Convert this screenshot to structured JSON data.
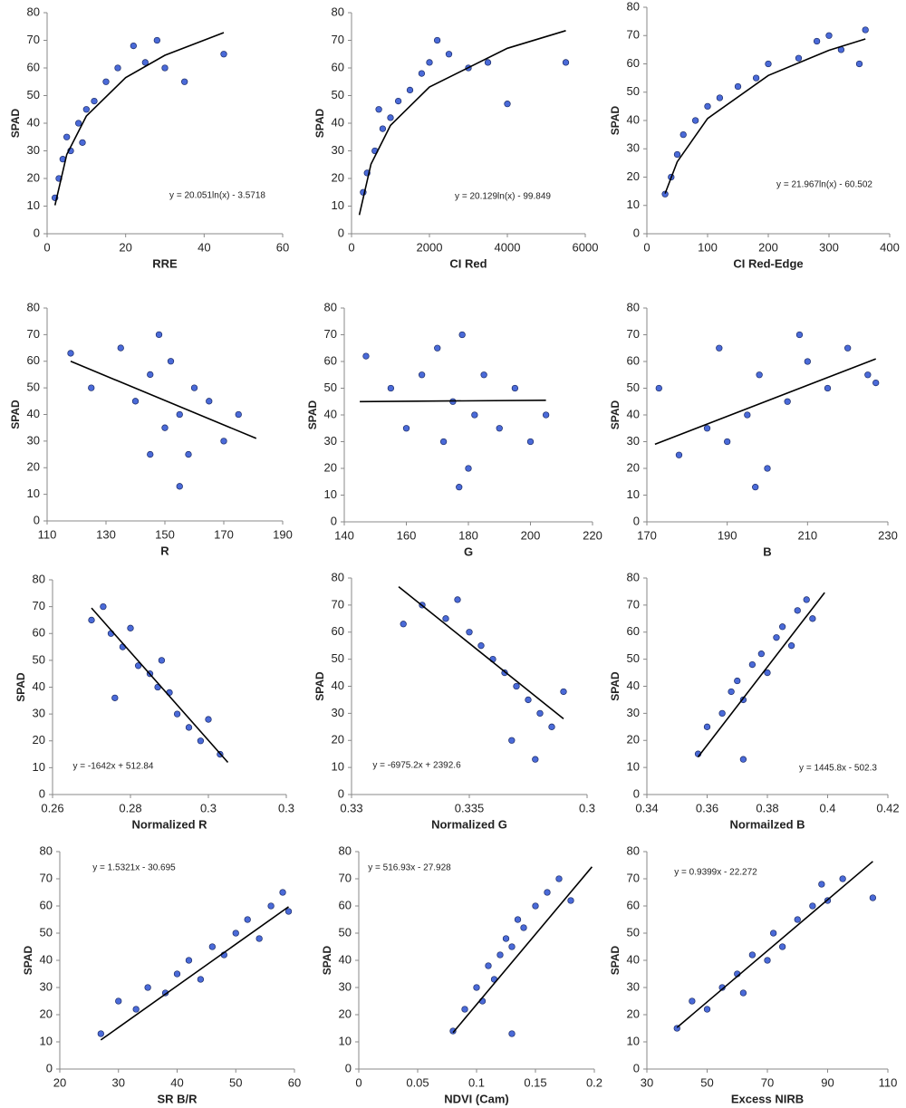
{
  "chart_data": [
    {
      "type": "scatter",
      "x_label": "RRE",
      "y_label": "SPAD",
      "equation": "y = 20.051ln(x) - 3.5718",
      "xlim": [
        0,
        60
      ],
      "ylim": [
        0,
        80
      ],
      "xticks": [
        0,
        20,
        40,
        60
      ],
      "yticks": [
        0,
        10,
        20,
        30,
        40,
        50,
        60,
        70,
        80
      ],
      "color": "#4a6ad8",
      "line_color": "#000000",
      "points": {
        "x": [
          2,
          3,
          4,
          5,
          6,
          8,
          9,
          10,
          12,
          15,
          18,
          22,
          25,
          28,
          30,
          35,
          45
        ],
        "y": [
          13,
          20,
          27,
          35,
          30,
          40,
          33,
          45,
          48,
          55,
          60,
          68,
          62,
          70,
          60,
          55,
          65
        ]
      },
      "trendline": {
        "x": [
          2,
          5,
          10,
          20,
          30,
          45
        ],
        "y": [
          10.3,
          28.7,
          42.6,
          56.5,
          64.6,
          72.8
        ]
      }
    },
    {
      "type": "scatter",
      "x_label": "CI Red",
      "y_label": "SPAD",
      "equation": "y = 20.129ln(x) - 99.849",
      "xlim": [
        0,
        6000
      ],
      "ylim": [
        0,
        80
      ],
      "xticks": [
        0,
        2000,
        4000,
        6000
      ],
      "yticks": [
        0,
        10,
        20,
        30,
        40,
        50,
        60,
        70,
        80
      ],
      "color": "#4a6ad8",
      "line_color": "#000000",
      "points": {
        "x": [
          300,
          400,
          600,
          700,
          800,
          1000,
          1200,
          1500,
          1800,
          2000,
          2200,
          2500,
          3000,
          3500,
          4000,
          5500
        ],
        "y": [
          15,
          22,
          30,
          45,
          38,
          42,
          48,
          52,
          58,
          62,
          70,
          65,
          60,
          62,
          47,
          62
        ]
      },
      "trendline": {
        "x": [
          200,
          500,
          1000,
          2000,
          4000,
          5500
        ],
        "y": [
          6.8,
          25.2,
          39.2,
          53.1,
          67.1,
          73.5
        ]
      }
    },
    {
      "type": "scatter",
      "x_label": "CI Red-Edge",
      "y_label": "SPAD",
      "equation": "y = 21.967ln(x) - 60.502",
      "xlim": [
        0,
        400
      ],
      "ylim": [
        0,
        80
      ],
      "xticks": [
        0,
        100,
        200,
        300,
        400
      ],
      "yticks": [
        0,
        10,
        20,
        30,
        40,
        50,
        60,
        70,
        80
      ],
      "color": "#4a6ad8",
      "line_color": "#000000",
      "points": {
        "x": [
          30,
          40,
          50,
          60,
          80,
          100,
          120,
          150,
          180,
          200,
          250,
          280,
          300,
          320,
          350,
          360
        ],
        "y": [
          14,
          20,
          28,
          35,
          40,
          45,
          48,
          52,
          55,
          60,
          62,
          68,
          70,
          65,
          60,
          72
        ]
      },
      "trendline": {
        "x": [
          30,
          50,
          100,
          200,
          300,
          360
        ],
        "y": [
          14.2,
          25.4,
          40.7,
          55.9,
          64.8,
          68.8
        ]
      }
    },
    {
      "type": "scatter",
      "x_label": "R",
      "y_label": "SPAD",
      "xlim": [
        110,
        190
      ],
      "ylim": [
        0,
        80
      ],
      "xticks": [
        110,
        130,
        150,
        170,
        190
      ],
      "yticks": [
        0,
        10,
        20,
        30,
        40,
        50,
        60,
        70,
        80
      ],
      "color": "#4a6ad8",
      "line_color": "#000000",
      "points": {
        "x": [
          118,
          125,
          135,
          140,
          145,
          148,
          150,
          152,
          155,
          158,
          160,
          165,
          170,
          175,
          145,
          155
        ],
        "y": [
          63,
          50,
          65,
          45,
          55,
          70,
          35,
          60,
          40,
          25,
          50,
          45,
          30,
          40,
          25,
          13
        ]
      },
      "trendline": {
        "x": [
          118,
          181
        ],
        "y": [
          60,
          31
        ]
      }
    },
    {
      "type": "scatter",
      "x_label": "G",
      "y_label": "SPAD",
      "xlim": [
        140,
        220
      ],
      "ylim": [
        0,
        80
      ],
      "xticks": [
        140,
        160,
        180,
        200,
        220
      ],
      "yticks": [
        0,
        10,
        20,
        30,
        40,
        50,
        60,
        70,
        80
      ],
      "color": "#4a6ad8",
      "line_color": "#000000",
      "points": {
        "x": [
          147,
          155,
          160,
          165,
          170,
          172,
          175,
          177,
          178,
          180,
          182,
          185,
          190,
          195,
          200,
          205
        ],
        "y": [
          62,
          50,
          35,
          55,
          65,
          30,
          45,
          13,
          70,
          20,
          40,
          55,
          35,
          50,
          30,
          40
        ]
      },
      "trendline": {
        "x": [
          145,
          205
        ],
        "y": [
          45,
          45.5
        ]
      }
    },
    {
      "type": "scatter",
      "x_label": "B",
      "y_label": "SPAD",
      "xlim": [
        170,
        230
      ],
      "ylim": [
        0,
        80
      ],
      "xticks": [
        170,
        190,
        210,
        230
      ],
      "yticks": [
        0,
        10,
        20,
        30,
        40,
        50,
        60,
        70,
        80
      ],
      "color": "#4a6ad8",
      "line_color": "#000000",
      "points": {
        "x": [
          173,
          178,
          185,
          188,
          190,
          195,
          197,
          198,
          200,
          205,
          208,
          210,
          215,
          220,
          225,
          227
        ],
        "y": [
          50,
          25,
          35,
          65,
          30,
          40,
          13,
          55,
          20,
          45,
          70,
          60,
          50,
          65,
          55,
          52
        ]
      },
      "trendline": {
        "x": [
          172,
          227
        ],
        "y": [
          29,
          61
        ]
      }
    },
    {
      "type": "scatter",
      "x_label": "Normalized R",
      "y_label": "SPAD",
      "equation": "y = -1642x + 512.84",
      "xlim": [
        0.26,
        0.32
      ],
      "ylim": [
        0,
        80
      ],
      "xticks": [
        0.26,
        0.28,
        0.3,
        {
          "value": 0.32,
          "label": "0.3"
        }
      ],
      "yticks": [
        0,
        10,
        20,
        30,
        40,
        50,
        60,
        70,
        80
      ],
      "color": "#4a6ad8",
      "line_color": "#000000",
      "points": {
        "x": [
          0.27,
          0.273,
          0.275,
          0.276,
          0.278,
          0.28,
          0.282,
          0.285,
          0.287,
          0.288,
          0.29,
          0.292,
          0.295,
          0.298,
          0.3,
          0.303
        ],
        "y": [
          65,
          70,
          60,
          36,
          55,
          62,
          48,
          45,
          40,
          50,
          38,
          30,
          25,
          20,
          28,
          15
        ]
      },
      "trendline": {
        "x": [
          0.27,
          0.305
        ],
        "y": [
          69.5,
          12.0
        ]
      }
    },
    {
      "type": "scatter",
      "x_label": "Normalized G",
      "y_label": "SPAD",
      "equation": "y = -6975.2x + 2392.6",
      "xlim": [
        0.33,
        0.34
      ],
      "ylim": [
        0,
        80
      ],
      "xticks": [
        0.33,
        0.335,
        {
          "value": 0.34,
          "label": "0.3"
        }
      ],
      "yticks": [
        0,
        10,
        20,
        30,
        40,
        50,
        60,
        70,
        80
      ],
      "color": "#4a6ad8",
      "line_color": "#000000",
      "points": {
        "x": [
          0.3322,
          0.333,
          0.334,
          0.3345,
          0.335,
          0.3355,
          0.336,
          0.3365,
          0.3368,
          0.337,
          0.3375,
          0.3378,
          0.338,
          0.3385,
          0.339
        ],
        "y": [
          63,
          70,
          65,
          72,
          60,
          55,
          50,
          45,
          20,
          40,
          35,
          13,
          30,
          25,
          38
        ]
      },
      "trendline": {
        "x": [
          0.332,
          0.339
        ],
        "y": [
          76.8,
          28.0
        ]
      }
    },
    {
      "type": "scatter",
      "x_label": "Normailzed B",
      "y_label": "SPAD",
      "equation": "y = 1445.8x - 502.3",
      "xlim": [
        0.34,
        0.42
      ],
      "ylim": [
        0,
        80
      ],
      "xticks": [
        0.34,
        0.36,
        0.38,
        0.4,
        0.42
      ],
      "yticks": [
        0,
        10,
        20,
        30,
        40,
        50,
        60,
        70,
        80
      ],
      "color": "#4a6ad8",
      "line_color": "#000000",
      "points": {
        "x": [
          0.357,
          0.36,
          0.365,
          0.368,
          0.37,
          0.372,
          0.372,
          0.375,
          0.378,
          0.38,
          0.383,
          0.385,
          0.388,
          0.39,
          0.393,
          0.395
        ],
        "y": [
          15,
          25,
          30,
          38,
          42,
          35,
          13,
          48,
          52,
          45,
          58,
          62,
          55,
          68,
          72,
          65
        ]
      },
      "trendline": {
        "x": [
          0.357,
          0.399
        ],
        "y": [
          13.9,
          74.6
        ]
      }
    },
    {
      "type": "scatter",
      "x_label": "SR B/R",
      "y_label": "SPAD",
      "equation": "y = 1.5321x - 30.695",
      "xlim": [
        20,
        60
      ],
      "ylim": [
        0,
        80
      ],
      "xticks": [
        20,
        30,
        40,
        50,
        60
      ],
      "yticks": [
        0,
        10,
        20,
        30,
        40,
        50,
        60,
        70,
        80
      ],
      "color": "#4a6ad8",
      "line_color": "#000000",
      "points": {
        "x": [
          27,
          30,
          33,
          35,
          38,
          40,
          42,
          44,
          46,
          48,
          50,
          52,
          54,
          56,
          58,
          59
        ],
        "y": [
          13,
          25,
          22,
          30,
          28,
          35,
          40,
          33,
          45,
          42,
          50,
          55,
          48,
          60,
          65,
          58
        ]
      },
      "trendline": {
        "x": [
          27,
          59
        ],
        "y": [
          10.7,
          59.7
        ]
      }
    },
    {
      "type": "scatter",
      "x_label": "NDVI (Cam)",
      "y_label": "SPAD",
      "equation": "y = 516.93x - 27.928",
      "xlim": [
        0,
        0.2
      ],
      "ylim": [
        0,
        80
      ],
      "xticks": [
        0,
        0.05,
        0.1,
        0.15,
        0.2
      ],
      "yticks": [
        0,
        10,
        20,
        30,
        40,
        50,
        60,
        70,
        80
      ],
      "color": "#4a6ad8",
      "line_color": "#000000",
      "points": {
        "x": [
          0.08,
          0.09,
          0.1,
          0.105,
          0.11,
          0.115,
          0.12,
          0.125,
          0.13,
          0.13,
          0.135,
          0.14,
          0.15,
          0.16,
          0.17,
          0.18
        ],
        "y": [
          14,
          22,
          30,
          25,
          38,
          33,
          42,
          48,
          45,
          13,
          55,
          52,
          60,
          65,
          70,
          62
        ]
      },
      "trendline": {
        "x": [
          0.08,
          0.198
        ],
        "y": [
          13.4,
          74.4
        ]
      }
    },
    {
      "type": "scatter",
      "x_label": "Excess NIRB",
      "y_label": "SPAD",
      "equation": "y = 0.9399x - 22.272",
      "xlim": [
        30,
        110
      ],
      "ylim": [
        0,
        80
      ],
      "xticks": [
        30,
        50,
        70,
        90,
        110
      ],
      "yticks": [
        0,
        10,
        20,
        30,
        40,
        50,
        60,
        70,
        80
      ],
      "color": "#4a6ad8",
      "line_color": "#000000",
      "points": {
        "x": [
          40,
          45,
          50,
          55,
          60,
          62,
          65,
          70,
          72,
          75,
          80,
          85,
          88,
          90,
          95,
          105
        ],
        "y": [
          15,
          25,
          22,
          30,
          35,
          28,
          42,
          40,
          50,
          45,
          55,
          60,
          68,
          62,
          70,
          63
        ]
      },
      "trendline": {
        "x": [
          40,
          105
        ],
        "y": [
          15.3,
          76.4
        ]
      }
    }
  ]
}
